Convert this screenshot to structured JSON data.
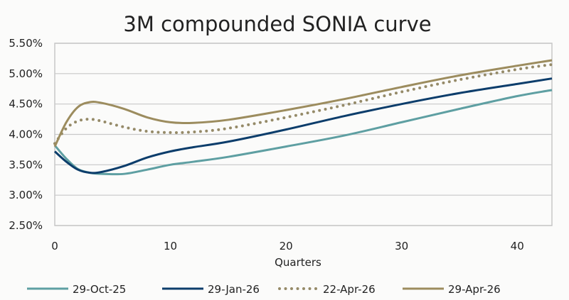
{
  "chart_data": {
    "type": "line",
    "title": "3M compounded SONIA curve",
    "xlabel": "Quarters",
    "ylabel": "",
    "xlim": [
      0,
      43
    ],
    "ylim": [
      2.5,
      5.5
    ],
    "x_ticks": [
      "0",
      "10",
      "20",
      "30",
      "40"
    ],
    "y_ticks": [
      "2.50%",
      "3.00%",
      "3.50%",
      "4.00%",
      "4.50%",
      "5.00%",
      "5.50%"
    ],
    "grid": "horizontal",
    "legend_position": "bottom",
    "x": [
      0,
      1,
      2,
      3,
      4,
      6,
      8,
      10,
      12,
      15,
      20,
      25,
      30,
      35,
      40,
      43
    ],
    "series": [
      {
        "name": "29-Oct-25",
        "color": "#5e9fa2",
        "style": "solid",
        "values": [
          3.82,
          3.6,
          3.43,
          3.37,
          3.35,
          3.35,
          3.42,
          3.5,
          3.55,
          3.63,
          3.8,
          3.98,
          4.2,
          4.42,
          4.63,
          4.73
        ]
      },
      {
        "name": "29-Jan-26",
        "color": "#0c3d6b",
        "style": "solid",
        "values": [
          3.72,
          3.55,
          3.42,
          3.37,
          3.38,
          3.48,
          3.62,
          3.72,
          3.79,
          3.88,
          4.08,
          4.3,
          4.5,
          4.68,
          4.83,
          4.92
        ]
      },
      {
        "name": "22-Apr-26",
        "color": "#958a68",
        "style": "dotted",
        "values": [
          3.85,
          4.1,
          4.22,
          4.25,
          4.22,
          4.12,
          4.05,
          4.03,
          4.04,
          4.1,
          4.28,
          4.48,
          4.7,
          4.9,
          5.07,
          5.15
        ]
      },
      {
        "name": "29-Apr-26",
        "color": "#9c8c5e",
        "style": "solid",
        "values": [
          3.8,
          4.2,
          4.45,
          4.53,
          4.52,
          4.42,
          4.28,
          4.2,
          4.19,
          4.24,
          4.4,
          4.58,
          4.78,
          4.97,
          5.13,
          5.22
        ]
      }
    ]
  }
}
